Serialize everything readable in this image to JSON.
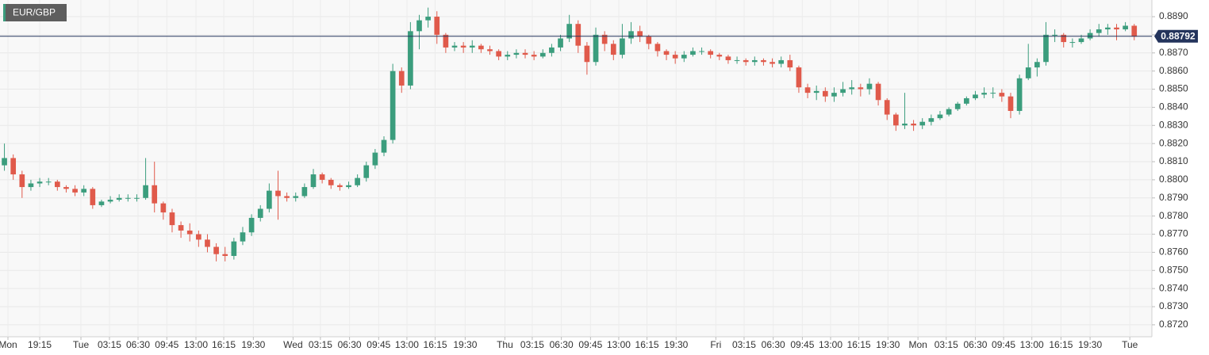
{
  "chart_data": {
    "type": "candlestick",
    "symbol": "EUR/GBP",
    "last_price": {
      "value": 0.88792,
      "label": "0.88792"
    },
    "colors": {
      "up": "#3b9d7d",
      "down": "#e05a4b",
      "last": "#24345c"
    },
    "grid": true,
    "xlim": [
      0,
      130.5
    ],
    "ylim": [
      0.87134,
      0.88992
    ],
    "yticks": [
      {
        "value": 0.872,
        "label": "0.8720"
      },
      {
        "value": 0.873,
        "label": "0.8730"
      },
      {
        "value": 0.874,
        "label": "0.8740"
      },
      {
        "value": 0.875,
        "label": "0.8750"
      },
      {
        "value": 0.876,
        "label": "0.8760"
      },
      {
        "value": 0.877,
        "label": "0.8770"
      },
      {
        "value": 0.878,
        "label": "0.8780"
      },
      {
        "value": 0.879,
        "label": "0.8790"
      },
      {
        "value": 0.88,
        "label": "0.8800"
      },
      {
        "value": 0.881,
        "label": "0.8810"
      },
      {
        "value": 0.882,
        "label": "0.8820"
      },
      {
        "value": 0.883,
        "label": "0.8830"
      },
      {
        "value": 0.884,
        "label": "0.8840"
      },
      {
        "value": 0.885,
        "label": "0.8850"
      },
      {
        "value": 0.886,
        "label": "0.8860"
      },
      {
        "value": 0.887,
        "label": "0.8870"
      },
      {
        "value": 0.888,
        "label": "0.8880"
      },
      {
        "value": 0.889,
        "label": "0.8890"
      }
    ],
    "xticks": [
      {
        "value": 0.9,
        "label": "Mon"
      },
      {
        "value": 4.5,
        "label": "19:15"
      },
      {
        "value": 9.17,
        "label": "Tue"
      },
      {
        "value": 12.4,
        "label": "03:15"
      },
      {
        "value": 15.64,
        "label": "06:30"
      },
      {
        "value": 18.9,
        "label": "09:45"
      },
      {
        "value": 22.2,
        "label": "13:00"
      },
      {
        "value": 25.35,
        "label": "16:15"
      },
      {
        "value": 28.7,
        "label": "19:30"
      },
      {
        "value": 33.2,
        "label": "Wed"
      },
      {
        "value": 36.3,
        "label": "03:15"
      },
      {
        "value": 39.6,
        "label": "06:30"
      },
      {
        "value": 42.9,
        "label": "09:45"
      },
      {
        "value": 46.1,
        "label": "13:00"
      },
      {
        "value": 49.3,
        "label": "16:15"
      },
      {
        "value": 52.7,
        "label": "19:30"
      },
      {
        "value": 57.2,
        "label": "Thu"
      },
      {
        "value": 60.3,
        "label": "03:15"
      },
      {
        "value": 63.6,
        "label": "06:30"
      },
      {
        "value": 66.9,
        "label": "09:45"
      },
      {
        "value": 70.1,
        "label": "13:00"
      },
      {
        "value": 73.3,
        "label": "16:15"
      },
      {
        "value": 76.6,
        "label": "19:30"
      },
      {
        "value": 81.1,
        "label": "Fri"
      },
      {
        "value": 84.3,
        "label": "03:15"
      },
      {
        "value": 87.6,
        "label": "06:30"
      },
      {
        "value": 90.9,
        "label": "09:45"
      },
      {
        "value": 94.1,
        "label": "13:00"
      },
      {
        "value": 97.3,
        "label": "16:15"
      },
      {
        "value": 100.6,
        "label": "19:30"
      },
      {
        "value": 104.0,
        "label": "Mon"
      },
      {
        "value": 107.2,
        "label": "03:15"
      },
      {
        "value": 110.5,
        "label": "06:30"
      },
      {
        "value": 113.7,
        "label": "09:45"
      },
      {
        "value": 116.9,
        "label": "13:00"
      },
      {
        "value": 120.2,
        "label": "16:15"
      },
      {
        "value": 123.5,
        "label": "19:30"
      },
      {
        "value": 128.0,
        "label": "Tue"
      }
    ],
    "x": [
      0.5,
      1.5,
      2.5,
      3.5,
      4.5,
      5.5,
      6.5,
      7.5,
      8.5,
      9.5,
      10.5,
      11.5,
      12.5,
      13.5,
      14.5,
      15.5,
      16.5,
      17.5,
      18.5,
      19.5,
      20.5,
      21.5,
      22.5,
      23.5,
      24.5,
      25.5,
      26.5,
      27.5,
      28.5,
      29.5,
      30.5,
      31.5,
      32.5,
      33.5,
      34.5,
      35.5,
      36.5,
      37.5,
      38.5,
      39.5,
      40.5,
      41.5,
      42.5,
      43.5,
      44.5,
      45.5,
      46.5,
      47.5,
      48.5,
      49.5,
      50.5,
      51.5,
      52.5,
      53.5,
      54.5,
      55.5,
      56.5,
      57.5,
      58.5,
      59.5,
      60.5,
      61.5,
      62.5,
      63.5,
      64.5,
      65.5,
      66.5,
      67.5,
      68.5,
      69.5,
      70.5,
      71.5,
      72.5,
      73.5,
      74.5,
      75.5,
      76.5,
      77.5,
      78.5,
      79.5,
      80.5,
      81.5,
      82.5,
      83.5,
      84.5,
      85.5,
      86.5,
      87.5,
      88.5,
      89.5,
      90.5,
      91.5,
      92.5,
      93.5,
      94.5,
      95.5,
      96.5,
      97.5,
      98.5,
      99.5,
      100.5,
      101.5,
      102.5,
      103.5,
      104.5,
      105.5,
      106.5,
      107.5,
      108.5,
      109.5,
      110.5,
      111.5,
      112.5,
      113.5,
      114.5,
      115.5,
      116.5,
      117.5,
      118.5,
      119.5,
      120.5,
      121.5,
      122.5,
      123.5,
      124.5,
      125.5,
      126.5,
      127.5,
      128.5
    ],
    "open": [
      0.8808,
      0.8812,
      0.8803,
      0.8796,
      0.8798,
      0.8799,
      0.8799,
      0.8796,
      0.8795,
      0.8793,
      0.8795,
      0.8786,
      0.8788,
      0.8789,
      0.879,
      0.879,
      0.879,
      0.8797,
      0.8787,
      0.8782,
      0.8775,
      0.8772,
      0.877,
      0.8767,
      0.8763,
      0.8759,
      0.8758,
      0.8766,
      0.8771,
      0.8779,
      0.8784,
      0.8794,
      0.8791,
      0.879,
      0.8791,
      0.8796,
      0.8803,
      0.88,
      0.8797,
      0.8796,
      0.8797,
      0.8801,
      0.8808,
      0.8815,
      0.8822,
      0.886,
      0.8852,
      0.8882,
      0.8888,
      0.889,
      0.888,
      0.8873,
      0.8874,
      0.8873,
      0.8874,
      0.8872,
      0.8871,
      0.8868,
      0.8869,
      0.887,
      0.8869,
      0.8868,
      0.887,
      0.8873,
      0.8878,
      0.8886,
      0.8874,
      0.8865,
      0.888,
      0.8875,
      0.8869,
      0.8878,
      0.8882,
      0.8879,
      0.8875,
      0.8871,
      0.8869,
      0.8867,
      0.8869,
      0.8871,
      0.8871,
      0.8869,
      0.8868,
      0.8866,
      0.8866,
      0.8865,
      0.8866,
      0.8865,
      0.8864,
      0.8866,
      0.8862,
      0.8851,
      0.8848,
      0.8849,
      0.8846,
      0.8848,
      0.885,
      0.8851,
      0.885,
      0.8853,
      0.8844,
      0.8836,
      0.883,
      0.8831,
      0.883,
      0.8832,
      0.8834,
      0.8836,
      0.8839,
      0.8842,
      0.8845,
      0.8847,
      0.8848,
      0.8848,
      0.8846,
      0.8838,
      0.8856,
      0.8862,
      0.8865,
      0.888,
      0.888,
      0.8876,
      0.8876,
      0.8878,
      0.8881,
      0.8883,
      0.8884,
      0.8883,
      0.8885
    ],
    "high": [
      0.882,
      0.8814,
      0.8805,
      0.88,
      0.8801,
      0.8801,
      0.88,
      0.8797,
      0.8797,
      0.8797,
      0.8796,
      0.8789,
      0.8791,
      0.8792,
      0.8792,
      0.8792,
      0.8812,
      0.881,
      0.8788,
      0.8784,
      0.8777,
      0.8776,
      0.8772,
      0.877,
      0.8765,
      0.8763,
      0.8768,
      0.8774,
      0.8781,
      0.8786,
      0.8798,
      0.8805,
      0.8793,
      0.8793,
      0.8798,
      0.8806,
      0.8804,
      0.8801,
      0.8798,
      0.8799,
      0.8803,
      0.881,
      0.8817,
      0.8824,
      0.8864,
      0.8862,
      0.8887,
      0.8891,
      0.8895,
      0.8893,
      0.8881,
      0.8876,
      0.8876,
      0.8877,
      0.8875,
      0.8874,
      0.8872,
      0.8871,
      0.8872,
      0.8872,
      0.8871,
      0.8872,
      0.8875,
      0.888,
      0.8891,
      0.8888,
      0.8876,
      0.8884,
      0.8882,
      0.8877,
      0.8886,
      0.8887,
      0.8885,
      0.888,
      0.8876,
      0.8872,
      0.8871,
      0.8871,
      0.8873,
      0.8873,
      0.8872,
      0.887,
      0.8869,
      0.8868,
      0.8867,
      0.8868,
      0.8867,
      0.8867,
      0.8868,
      0.8869,
      0.8863,
      0.8853,
      0.8852,
      0.8851,
      0.8851,
      0.8854,
      0.8855,
      0.8853,
      0.8856,
      0.8854,
      0.8845,
      0.8837,
      0.8848,
      0.8833,
      0.8834,
      0.8836,
      0.8838,
      0.884,
      0.8843,
      0.8846,
      0.8849,
      0.8851,
      0.8851,
      0.885,
      0.8848,
      0.8858,
      0.8875,
      0.8867,
      0.8887,
      0.8883,
      0.8881,
      0.8878,
      0.888,
      0.8883,
      0.8886,
      0.8886,
      0.8886,
      0.8887,
      0.8886
    ],
    "low": [
      0.8805,
      0.88,
      0.879,
      0.8794,
      0.8796,
      0.8797,
      0.8794,
      0.8793,
      0.8791,
      0.8791,
      0.8784,
      0.8785,
      0.8787,
      0.8788,
      0.8788,
      0.8788,
      0.8789,
      0.8782,
      0.8778,
      0.8771,
      0.8768,
      0.8766,
      0.8763,
      0.876,
      0.8755,
      0.8755,
      0.8756,
      0.8764,
      0.8769,
      0.8777,
      0.8782,
      0.8778,
      0.8788,
      0.8788,
      0.879,
      0.8795,
      0.8798,
      0.8795,
      0.8794,
      0.8795,
      0.8796,
      0.8799,
      0.8806,
      0.8813,
      0.882,
      0.8848,
      0.885,
      0.8872,
      0.8884,
      0.8875,
      0.887,
      0.8871,
      0.887,
      0.887,
      0.887,
      0.8869,
      0.8866,
      0.8866,
      0.8867,
      0.8867,
      0.8866,
      0.8867,
      0.8868,
      0.8871,
      0.8876,
      0.887,
      0.8858,
      0.8863,
      0.8871,
      0.8866,
      0.8867,
      0.8875,
      0.8876,
      0.8872,
      0.8868,
      0.8866,
      0.8864,
      0.8865,
      0.8868,
      0.8869,
      0.8867,
      0.8866,
      0.8864,
      0.8864,
      0.8863,
      0.8863,
      0.8863,
      0.8862,
      0.8862,
      0.886,
      0.8848,
      0.8845,
      0.8844,
      0.8843,
      0.8843,
      0.8846,
      0.8847,
      0.8846,
      0.8847,
      0.8841,
      0.8833,
      0.8827,
      0.8828,
      0.8827,
      0.8828,
      0.883,
      0.8833,
      0.8835,
      0.8838,
      0.8841,
      0.8844,
      0.8845,
      0.8845,
      0.8843,
      0.8834,
      0.8836,
      0.8855,
      0.8857,
      0.8863,
      0.8876,
      0.8873,
      0.8873,
      0.8875,
      0.8877,
      0.8879,
      0.888,
      0.8877,
      0.8882,
      0.8877
    ],
    "close": [
      0.8812,
      0.8803,
      0.8796,
      0.8798,
      0.8799,
      0.8799,
      0.8796,
      0.8795,
      0.8793,
      0.8795,
      0.8786,
      0.8788,
      0.8789,
      0.879,
      0.879,
      0.879,
      0.8797,
      0.8787,
      0.8782,
      0.8775,
      0.8772,
      0.877,
      0.8767,
      0.8763,
      0.8759,
      0.8758,
      0.8766,
      0.8771,
      0.8779,
      0.8784,
      0.8794,
      0.8791,
      0.879,
      0.8791,
      0.8796,
      0.8803,
      0.88,
      0.8797,
      0.8796,
      0.8797,
      0.8801,
      0.8808,
      0.8815,
      0.8822,
      0.886,
      0.8852,
      0.8882,
      0.8888,
      0.889,
      0.888,
      0.8873,
      0.8874,
      0.8873,
      0.8874,
      0.8872,
      0.8871,
      0.8868,
      0.8869,
      0.887,
      0.8869,
      0.8868,
      0.887,
      0.8873,
      0.8878,
      0.8886,
      0.8874,
      0.8865,
      0.888,
      0.8875,
      0.8869,
      0.8878,
      0.8882,
      0.8879,
      0.8875,
      0.8871,
      0.8869,
      0.8867,
      0.8869,
      0.8871,
      0.8871,
      0.8869,
      0.8868,
      0.8866,
      0.8866,
      0.8865,
      0.8866,
      0.8865,
      0.8864,
      0.8866,
      0.8862,
      0.8851,
      0.8848,
      0.8849,
      0.8846,
      0.8848,
      0.885,
      0.8851,
      0.885,
      0.8853,
      0.8844,
      0.8836,
      0.883,
      0.8831,
      0.883,
      0.8832,
      0.8834,
      0.8836,
      0.8839,
      0.8842,
      0.8845,
      0.8847,
      0.8848,
      0.8848,
      0.8846,
      0.8838,
      0.8856,
      0.8862,
      0.8865,
      0.888,
      0.888,
      0.8876,
      0.8876,
      0.8878,
      0.8881,
      0.8883,
      0.8884,
      0.8883,
      0.8885,
      0.8879
    ]
  }
}
